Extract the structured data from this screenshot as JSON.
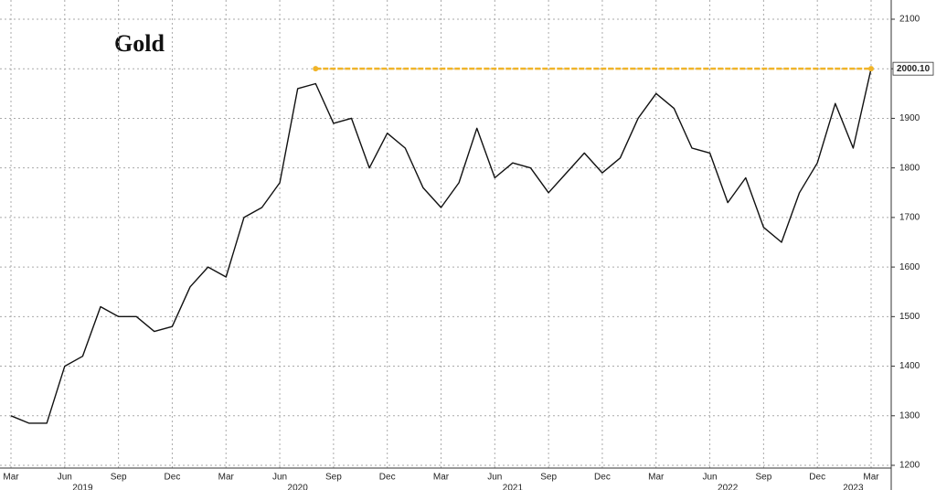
{
  "chart_data": {
    "type": "line",
    "title": "Gold",
    "color": "#111111",
    "x": [
      "2019-03",
      "2019-04",
      "2019-05",
      "2019-06",
      "2019-07",
      "2019-08",
      "2019-09",
      "2019-10",
      "2019-11",
      "2019-12",
      "2020-01",
      "2020-02",
      "2020-03",
      "2020-04",
      "2020-05",
      "2020-06",
      "2020-07",
      "2020-08",
      "2020-09",
      "2020-10",
      "2020-11",
      "2020-12",
      "2021-01",
      "2021-02",
      "2021-03",
      "2021-04",
      "2021-05",
      "2021-06",
      "2021-07",
      "2021-08",
      "2021-09",
      "2021-10",
      "2021-11",
      "2021-12",
      "2022-01",
      "2022-02",
      "2022-03",
      "2022-04",
      "2022-05",
      "2022-06",
      "2022-07",
      "2022-08",
      "2022-09",
      "2022-10",
      "2022-11",
      "2022-12",
      "2023-01",
      "2023-02",
      "2023-03"
    ],
    "values": [
      1300,
      1285,
      1285,
      1400,
      1420,
      1520,
      1500,
      1500,
      1470,
      1480,
      1560,
      1600,
      1580,
      1700,
      1720,
      1770,
      1960,
      1970,
      1890,
      1900,
      1800,
      1870,
      1840,
      1760,
      1720,
      1770,
      1880,
      1780,
      1810,
      1800,
      1750,
      1790,
      1830,
      1790,
      1820,
      1900,
      1950,
      1920,
      1840,
      1830,
      1730,
      1780,
      1680,
      1650,
      1750,
      1810,
      1930,
      1840,
      2000.1
    ],
    "ylim": [
      1200,
      2100
    ],
    "yticks": [
      1200,
      1300,
      1400,
      1500,
      1600,
      1700,
      1800,
      1900,
      2000,
      2100
    ],
    "xticks": [
      {
        "value": "2019-03",
        "label": "Mar"
      },
      {
        "value": "2019-06",
        "label": "Jun"
      },
      {
        "value": "2019-09",
        "label": "Sep"
      },
      {
        "value": "2019-12",
        "label": "Dec"
      },
      {
        "value": "2020-03",
        "label": "Mar"
      },
      {
        "value": "2020-06",
        "label": "Jun"
      },
      {
        "value": "2020-09",
        "label": "Sep"
      },
      {
        "value": "2020-12",
        "label": "Dec"
      },
      {
        "value": "2021-03",
        "label": "Mar"
      },
      {
        "value": "2021-06",
        "label": "Jun"
      },
      {
        "value": "2021-09",
        "label": "Sep"
      },
      {
        "value": "2021-12",
        "label": "Dec"
      },
      {
        "value": "2022-03",
        "label": "Mar"
      },
      {
        "value": "2022-06",
        "label": "Jun"
      },
      {
        "value": "2022-09",
        "label": "Sep"
      },
      {
        "value": "2022-12",
        "label": "Dec"
      },
      {
        "value": "2023-03",
        "label": "Mar"
      }
    ],
    "year_labels": [
      {
        "value": "2019-07",
        "label": "2019"
      },
      {
        "value": "2020-07",
        "label": "2020"
      },
      {
        "value": "2021-07",
        "label": "2021"
      },
      {
        "value": "2022-07",
        "label": "2022"
      },
      {
        "value": "2023-02",
        "label": "2023"
      }
    ],
    "reference_line": {
      "value": 2000.1,
      "label": "2000.10",
      "start": "2020-08",
      "color": "#f0b429"
    },
    "grid": true
  }
}
